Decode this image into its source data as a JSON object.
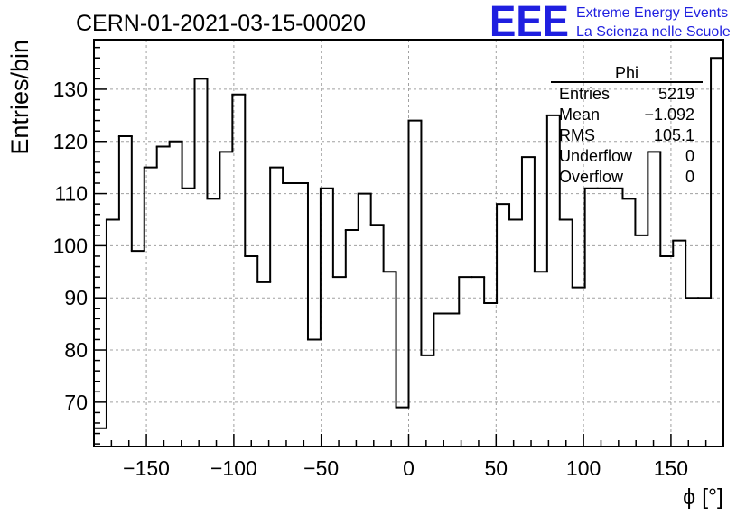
{
  "header": {
    "title": "CERN-01-2021-03-15-00020",
    "logo_text": "EEE",
    "org_line1": "Extreme Energy Events",
    "org_line2": "La Scienza nelle Scuole",
    "logo_color": "#1f1fe0"
  },
  "stats": {
    "title": "Phi",
    "rows": [
      {
        "label": "Entries",
        "value": "5219"
      },
      {
        "label": "Mean",
        "value": "−1.092"
      },
      {
        "label": "RMS",
        "value": "105.1"
      },
      {
        "label": "Underflow",
        "value": "0"
      },
      {
        "label": "Overflow",
        "value": "0"
      }
    ]
  },
  "chart_data": {
    "type": "histogram",
    "xlabel": "ϕ [°]",
    "ylabel": "Entries/bin",
    "xlim": [
      -180,
      180
    ],
    "ylim": [
      61.5,
      139.5
    ],
    "grid": true,
    "line_color": "#000000",
    "bin_width": 7.2,
    "x_start": -180,
    "values": [
      65,
      105,
      121,
      99,
      115,
      119,
      120,
      111,
      132,
      109,
      118,
      129,
      98,
      93,
      115,
      112,
      112,
      82,
      111,
      94,
      103,
      110,
      104,
      95,
      69,
      124,
      79,
      87,
      87,
      94,
      94,
      89,
      108,
      105,
      117,
      95,
      125,
      105,
      92,
      111,
      111,
      111,
      109,
      102,
      118,
      98,
      101,
      90,
      90,
      136
    ],
    "xticks": [
      -150,
      -100,
      -50,
      0,
      50,
      100,
      150
    ],
    "xtick_labels": [
      "−150",
      "−100",
      "−50",
      "0",
      "50",
      "100",
      "150"
    ],
    "yticks": [
      70,
      80,
      90,
      100,
      110,
      120,
      130
    ],
    "ytick_labels": [
      "70",
      "80",
      "90",
      "100",
      "110",
      "120",
      "130"
    ]
  }
}
